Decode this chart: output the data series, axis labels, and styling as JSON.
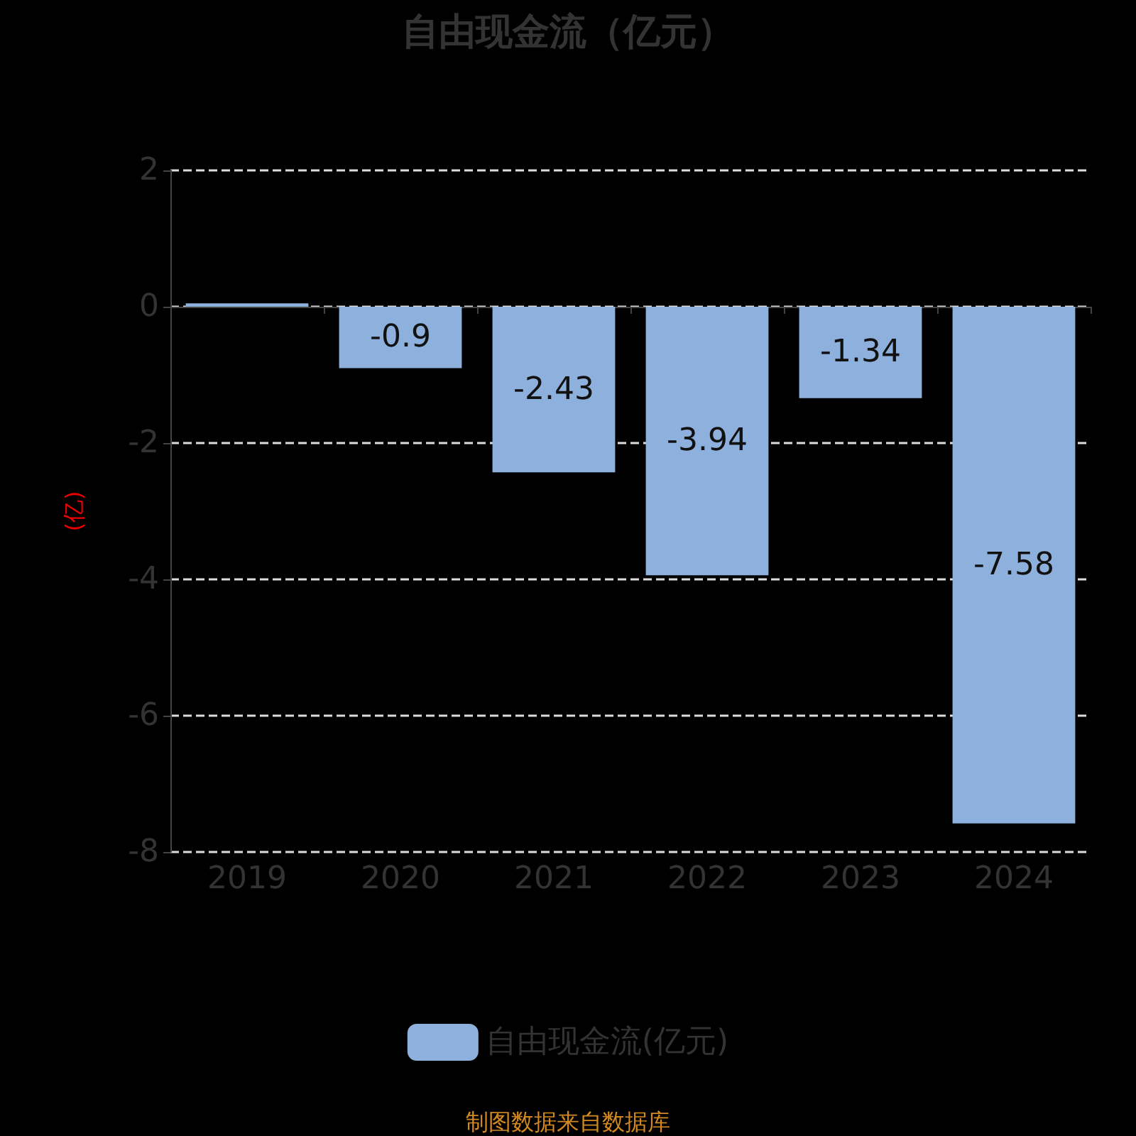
{
  "chart_data": {
    "type": "bar",
    "title": "自由现金流（亿元）",
    "ylabel": "(亿)",
    "categories": [
      "2019",
      "2020",
      "2021",
      "2022",
      "2023",
      "2024"
    ],
    "series": [
      {
        "name": "自由现金流(亿元)",
        "color": "#8eb0dc",
        "values": [
          0.05,
          -0.9,
          -2.43,
          -3.94,
          -1.34,
          -7.58
        ],
        "value_labels": [
          null,
          "-0.9",
          "-2.43",
          "-3.94",
          "-1.34",
          "-7.58"
        ]
      }
    ],
    "ylim": [
      -8,
      2
    ],
    "yticks": [
      -8,
      -6,
      -4,
      -2,
      0,
      2
    ],
    "grid": "y",
    "legend": "bottom",
    "annotations": [
      "制图数据来自数据库"
    ]
  }
}
